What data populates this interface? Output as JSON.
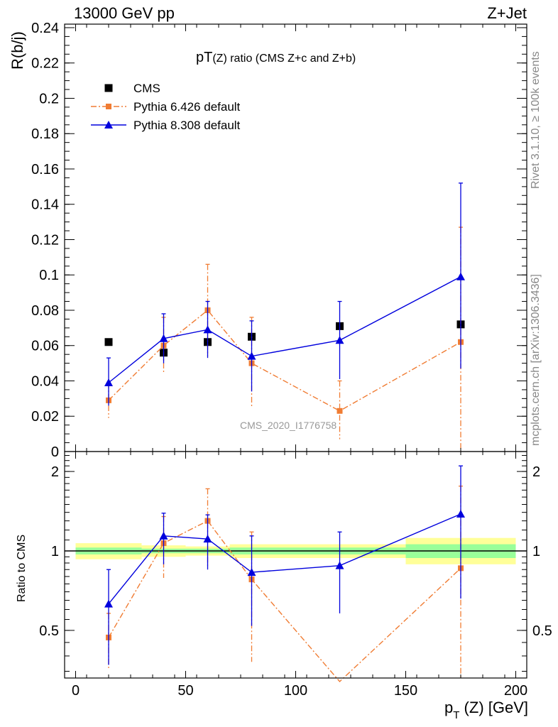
{
  "header": {
    "left": "13000 GeV pp",
    "right": "Z+Jet"
  },
  "side_labels": {
    "top": "Rivet 3.1.10, ≥ 100k events",
    "bottom": "mcplots.cern.ch [arXiv:1306.3436]"
  },
  "watermark": "CMS_2020_I1776758",
  "colors": {
    "cms": "#000000",
    "py6": "#f07c33",
    "py8": "#0000dd",
    "band_inner": "#99ff99",
    "band_outer": "#ffff99"
  },
  "chart_data": [
    {
      "type": "scatter",
      "panel": "main",
      "title_main": "pT",
      "title_sub": "(Z)",
      "title_rest": " ratio (CMS  Z+c and Z+b)",
      "ylabel": "R(b/j)",
      "ylim": [
        0,
        0.242
      ],
      "xlim": [
        -5,
        205
      ],
      "yticks": [
        0,
        0.02,
        0.04,
        0.06,
        0.08,
        0.1,
        0.12,
        0.14,
        0.16,
        0.18,
        0.2,
        0.22,
        0.24
      ],
      "ytick_labels": [
        "0",
        "0.02",
        "0.04",
        "0.06",
        "0.08",
        "0.1",
        "0.12",
        "0.14",
        "0.16",
        "0.18",
        "0.2",
        "0.22",
        "0.24"
      ],
      "legend_position": "top-left",
      "series": [
        {
          "name": "CMS",
          "style": "data",
          "x": [
            15,
            40,
            60,
            80,
            120,
            175
          ],
          "y": [
            0.062,
            0.056,
            0.062,
            0.065,
            0.071,
            0.072
          ],
          "err_lo": [
            0.0,
            0.0,
            0.0,
            0.0,
            0.0,
            0.0
          ],
          "err_hi": [
            0.0,
            0.0,
            0.0,
            0.0,
            0.0,
            0.0
          ]
        },
        {
          "name": "Pythia 6.426 default",
          "style": "py6",
          "x": [
            15,
            40,
            60,
            80,
            120,
            175
          ],
          "y": [
            0.029,
            0.06,
            0.08,
            0.05,
            0.023,
            0.062
          ],
          "err_lo": [
            0.01,
            0.016,
            0.026,
            0.025,
            0.016,
            0.062
          ],
          "err_hi": [
            0.01,
            0.016,
            0.026,
            0.026,
            0.017,
            0.065
          ]
        },
        {
          "name": "Pythia 8.308 default",
          "style": "py8",
          "x": [
            15,
            40,
            60,
            80,
            120,
            175
          ],
          "y": [
            0.039,
            0.064,
            0.069,
            0.054,
            0.063,
            0.099
          ],
          "err_lo": [
            0.013,
            0.014,
            0.016,
            0.02,
            0.022,
            0.052
          ],
          "err_hi": [
            0.014,
            0.014,
            0.016,
            0.02,
            0.022,
            0.053
          ]
        }
      ]
    },
    {
      "type": "scatter",
      "panel": "ratio",
      "ylabel": "Ratio to CMS",
      "xlabel_p": "p",
      "xlabel_sub": "T",
      "xlabel_rest": " (Z) [GeV]",
      "ylim": [
        0.33,
        2.38
      ],
      "xlim": [
        -5,
        205
      ],
      "scale": "log",
      "yticks_major": [
        0.5,
        1,
        2
      ],
      "ytick_labels": [
        "0.5",
        "1",
        "2"
      ],
      "xticks": [
        0,
        50,
        100,
        150,
        200
      ],
      "xtick_labels": [
        "0",
        "50",
        "100",
        "150",
        "200"
      ],
      "bands": [
        {
          "xlo": 0,
          "xhi": 30,
          "inner": [
            0.97,
            1.03
          ],
          "outer": [
            0.93,
            1.07
          ]
        },
        {
          "xlo": 30,
          "xhi": 50,
          "inner": [
            0.98,
            1.02
          ],
          "outer": [
            0.95,
            1.05
          ]
        },
        {
          "xlo": 50,
          "xhi": 70,
          "inner": [
            0.98,
            1.02
          ],
          "outer": [
            0.96,
            1.04
          ]
        },
        {
          "xlo": 70,
          "xhi": 150,
          "inner": [
            0.97,
            1.03
          ],
          "outer": [
            0.94,
            1.06
          ]
        },
        {
          "xlo": 150,
          "xhi": 200,
          "inner": [
            0.94,
            1.06
          ],
          "outer": [
            0.89,
            1.12
          ]
        }
      ],
      "series": [
        {
          "name": "Pythia 6.426 default",
          "style": "py6",
          "x": [
            15,
            40,
            60,
            80,
            120,
            175
          ],
          "y": [
            0.47,
            1.07,
            1.3,
            0.78,
            0.32,
            0.86
          ],
          "err_lo": [
            0.11,
            0.28,
            0.42,
            0.4,
            0.0,
            0.86
          ],
          "err_hi": [
            0.11,
            0.28,
            0.42,
            0.4,
            0.0,
            0.9
          ]
        },
        {
          "name": "Pythia 8.308 default",
          "style": "py8",
          "x": [
            15,
            40,
            60,
            80,
            120,
            175
          ],
          "y": [
            0.63,
            1.14,
            1.11,
            0.83,
            0.88,
            1.38
          ],
          "err_lo": [
            0.26,
            0.25,
            0.26,
            0.31,
            0.3,
            0.72
          ],
          "err_hi": [
            0.22,
            0.25,
            0.26,
            0.31,
            0.3,
            0.72
          ]
        }
      ]
    }
  ]
}
